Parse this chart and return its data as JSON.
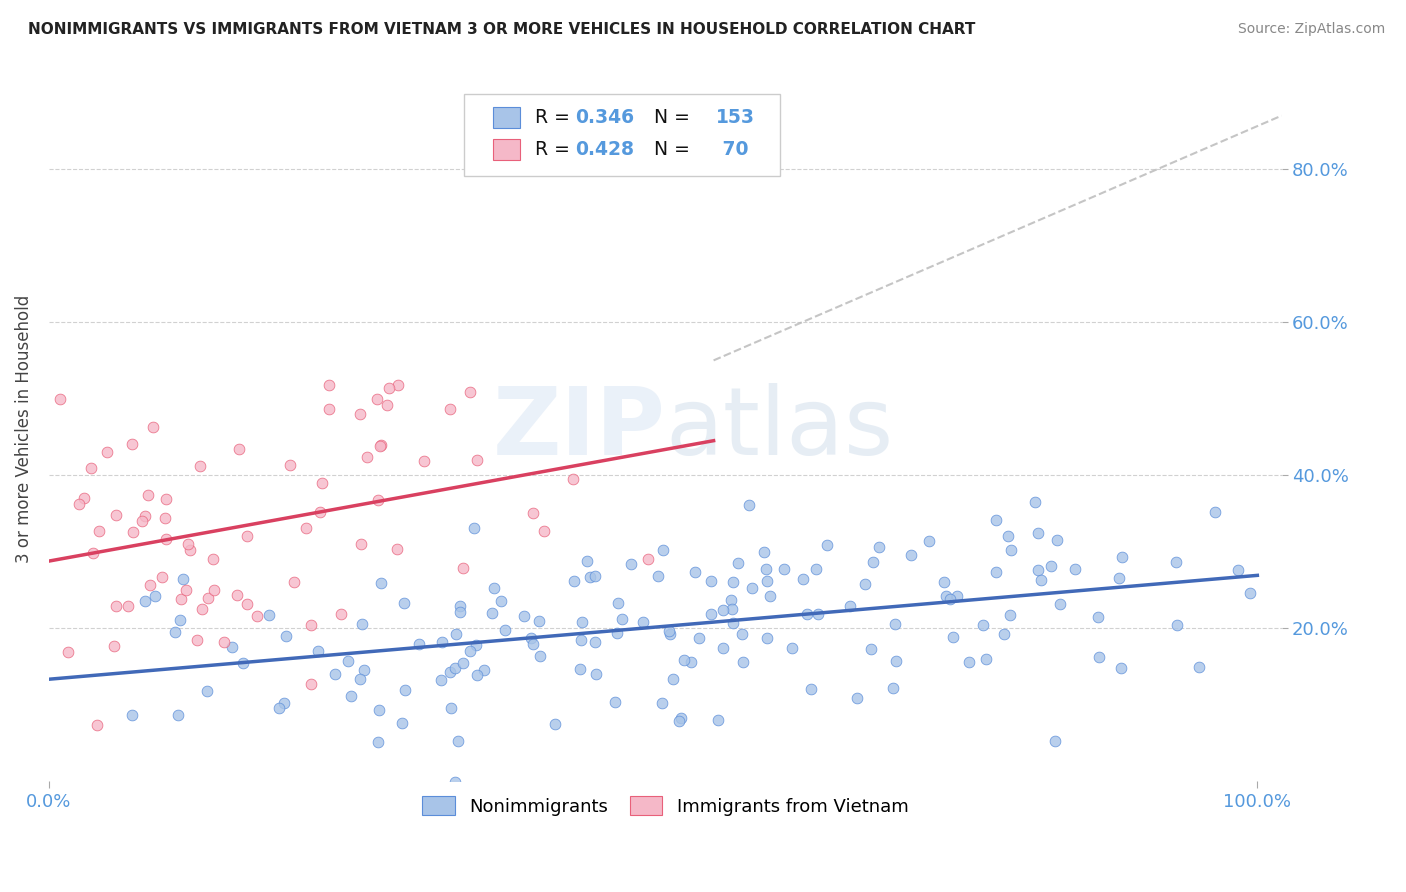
{
  "title": "NONIMMIGRANTS VS IMMIGRANTS FROM VIETNAM 3 OR MORE VEHICLES IN HOUSEHOLD CORRELATION CHART",
  "source": "Source: ZipAtlas.com",
  "ylabel": "3 or more Vehicles in Household",
  "nonimmigrants_color": "#a8c4e8",
  "nonimmigrants_edge": "#5b8dd9",
  "nonimmigrants_line": "#4169b8",
  "immigrants_color": "#f5b8c8",
  "immigrants_edge": "#e8607a",
  "immigrants_line": "#d94060",
  "R1": "0.346",
  "N1": "153",
  "R2": "0.428",
  "N2": "70",
  "background_color": "#ffffff",
  "grid_color": "#cccccc",
  "watermark_color": "#dde8f5",
  "right_tick_color": "#5599dd",
  "xlabel_color": "#5599dd"
}
